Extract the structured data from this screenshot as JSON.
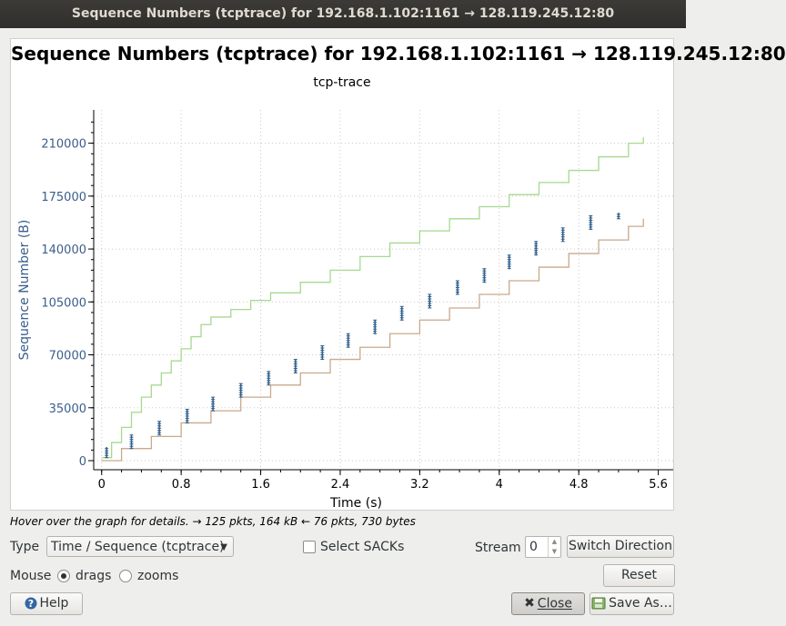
{
  "window": {
    "title": "Sequence Numbers (tcptrace) for 192.168.1.102:1161 → 128.119.245.12:80"
  },
  "plot": {
    "title": "Sequence Numbers (tcptrace) for 192.168.1.102:1161 → 128.119.245.12:80",
    "subtitle": "tcp-trace"
  },
  "chart_data": {
    "type": "line",
    "xlabel": "Time (s)",
    "ylabel": "Sequence Number (B)",
    "xlim": [
      -0.08,
      5.75
    ],
    "ylim": [
      -6000,
      232000
    ],
    "xticks": [
      "0",
      "0.8",
      "1.6",
      "2.4",
      "3.2",
      "4",
      "4.8",
      "5.6"
    ],
    "yticks": [
      "0",
      "35000",
      "70000",
      "105000",
      "140000",
      "175000",
      "210000"
    ],
    "grid": true,
    "colors": {
      "receive_window": "#a6d98f",
      "ack": "#c9a98c",
      "segments": "#2e5f8a",
      "axis_text": "#3a5e8c"
    },
    "series": [
      {
        "x": [
          0.0,
          0.1,
          0.2,
          0.3,
          0.4,
          0.5,
          0.6,
          0.7,
          0.8,
          0.9,
          1.0,
          1.1,
          1.3,
          1.5,
          1.7,
          2.0,
          2.3,
          2.6,
          2.9,
          3.2,
          3.5,
          3.8,
          4.1,
          4.4,
          4.7,
          5.0,
          5.3,
          5.45
        ],
        "y": [
          2000,
          12000,
          22000,
          32000,
          42000,
          50000,
          58000,
          66000,
          74000,
          82000,
          90000,
          95000,
          100000,
          106000,
          111000,
          118000,
          126000,
          135000,
          144000,
          152000,
          160000,
          168000,
          176000,
          184000,
          192000,
          201000,
          210000,
          214000
        ]
      },
      {
        "x": [
          0.0,
          0.2,
          0.5,
          0.8,
          1.1,
          1.4,
          1.7,
          2.0,
          2.3,
          2.6,
          2.9,
          3.2,
          3.5,
          3.8,
          4.1,
          4.4,
          4.7,
          5.0,
          5.3,
          5.45
        ],
        "y": [
          0,
          8000,
          16000,
          25000,
          33000,
          42000,
          50000,
          58000,
          67000,
          75000,
          84000,
          93000,
          101000,
          110000,
          119000,
          128000,
          137000,
          146000,
          155000,
          160000
        ]
      }
    ],
    "segment_bursts": [
      {
        "t": 0.05,
        "y0": 2000,
        "y1": 9000
      },
      {
        "t": 0.3,
        "y0": 8000,
        "y1": 17000
      },
      {
        "t": 0.58,
        "y0": 17000,
        "y1": 26000
      },
      {
        "t": 0.86,
        "y0": 25000,
        "y1": 34000
      },
      {
        "t": 1.12,
        "y0": 33000,
        "y1": 42000
      },
      {
        "t": 1.4,
        "y0": 42000,
        "y1": 51000
      },
      {
        "t": 1.68,
        "y0": 50000,
        "y1": 59000
      },
      {
        "t": 1.95,
        "y0": 58000,
        "y1": 67000
      },
      {
        "t": 2.22,
        "y0": 67000,
        "y1": 76000
      },
      {
        "t": 2.48,
        "y0": 75000,
        "y1": 84000
      },
      {
        "t": 2.75,
        "y0": 84000,
        "y1": 93000
      },
      {
        "t": 3.02,
        "y0": 93000,
        "y1": 102000
      },
      {
        "t": 3.3,
        "y0": 101000,
        "y1": 110000
      },
      {
        "t": 3.58,
        "y0": 110000,
        "y1": 119000
      },
      {
        "t": 3.85,
        "y0": 118000,
        "y1": 127000
      },
      {
        "t": 4.1,
        "y0": 127000,
        "y1": 136000
      },
      {
        "t": 4.37,
        "y0": 136000,
        "y1": 145000
      },
      {
        "t": 4.64,
        "y0": 145000,
        "y1": 154000
      },
      {
        "t": 4.92,
        "y0": 153000,
        "y1": 162000
      },
      {
        "t": 5.2,
        "y0": 160000,
        "y1": 164000
      }
    ]
  },
  "hint": "Hover over the graph for details. → 125 pkts, 164 kB ← 76 pkts, 730 bytes",
  "controls": {
    "type_label": "Type",
    "type_value": "Time / Sequence (tcptrace)",
    "select_sacks_label": "Select SACKs",
    "stream_label": "Stream",
    "stream_value": "0",
    "switch_direction_label": "Switch Direction",
    "mouse_label": "Mouse",
    "drags_label": "drags",
    "zooms_label": "zooms",
    "reset_label": "Reset",
    "help_label": "Help",
    "close_label": "Close",
    "save_as_label": "Save As…"
  }
}
